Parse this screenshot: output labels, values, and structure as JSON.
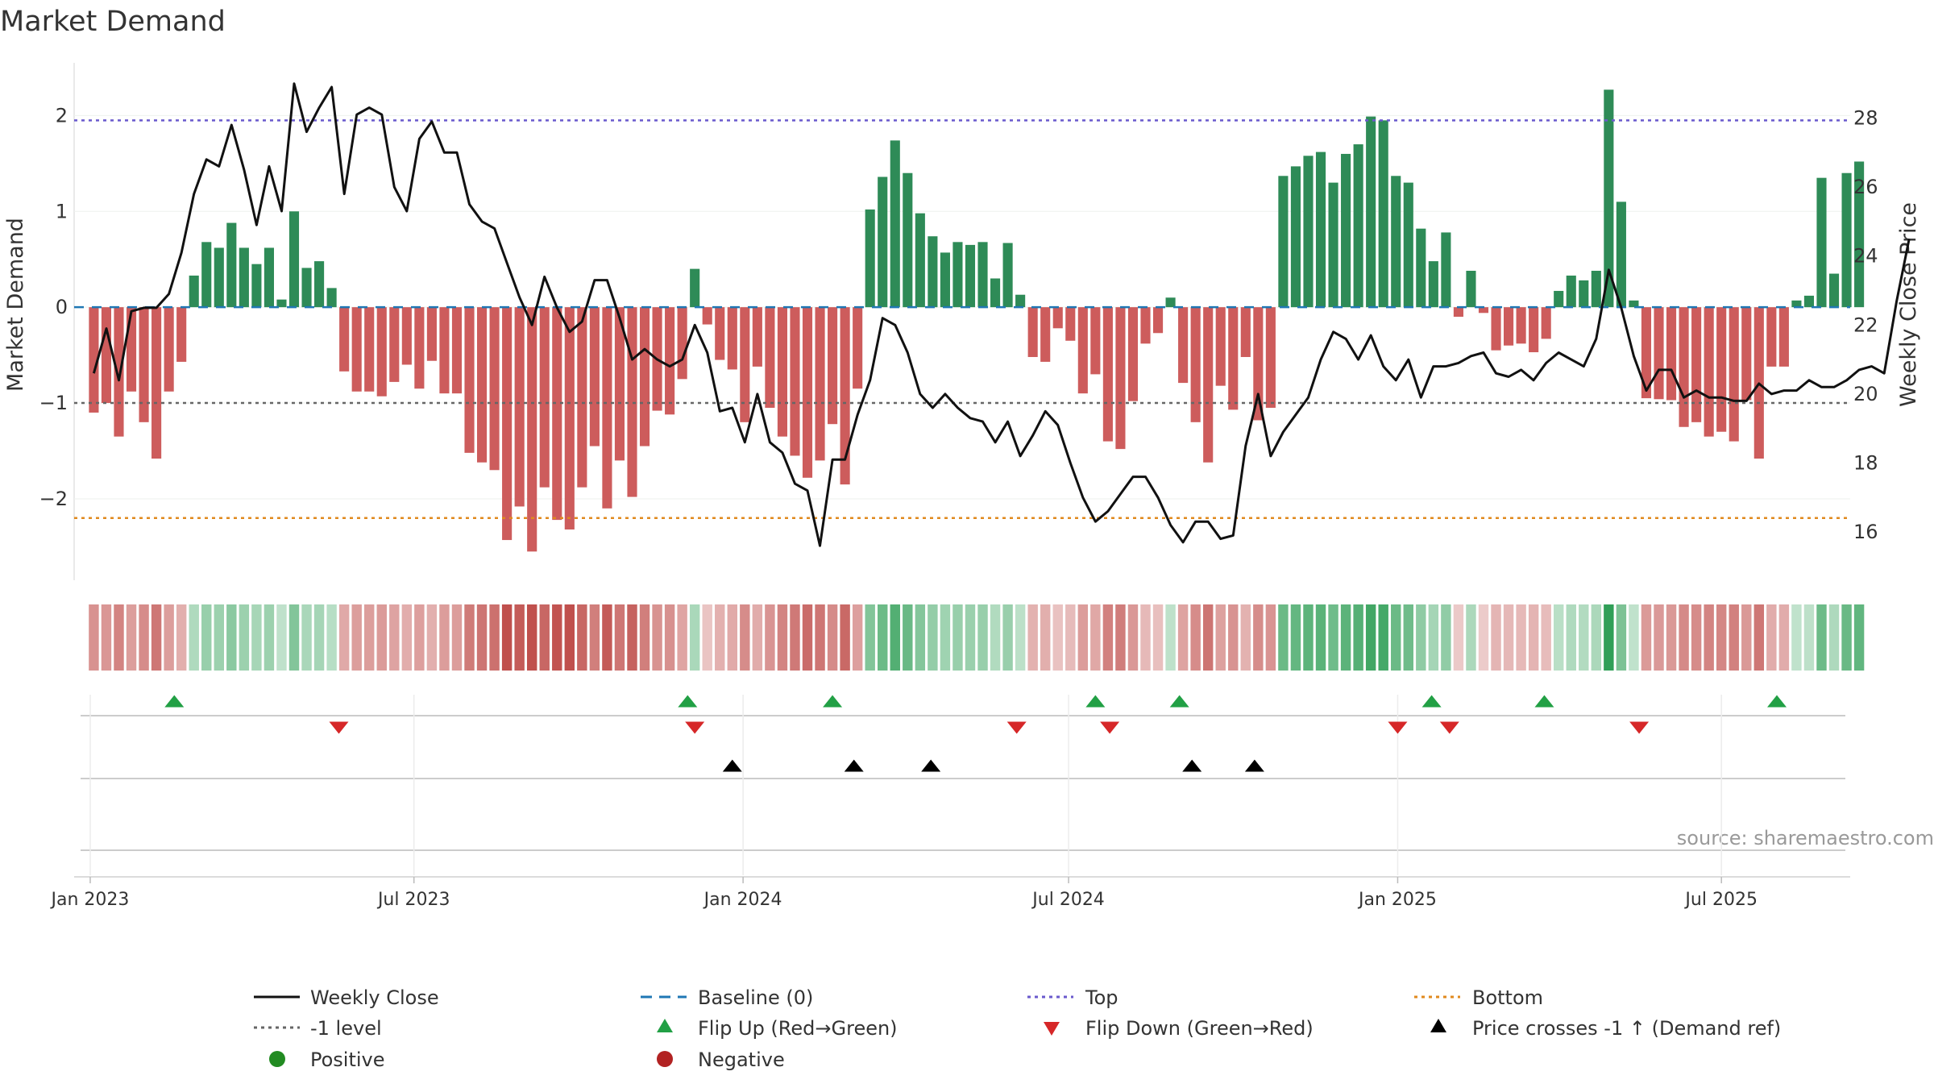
{
  "chart_data": {
    "type": "bar",
    "title": "Market Demand",
    "ylabel_left": "Market Demand",
    "ylabel_right": "Weekly Close Price",
    "source": "source: sharemaestro.com",
    "x_start": "2023-01-03",
    "x_step_days": 7,
    "xlim": [
      "2022-12-23",
      "2025-09-11"
    ],
    "ylim_left": [
      -2.85,
      2.55
    ],
    "ylim_right": [
      14.6,
      29.6
    ],
    "yticks_left": [
      2,
      1,
      0,
      -1,
      -2
    ],
    "ytick_labels_left": [
      "2",
      "1",
      "0",
      "−1",
      "−2"
    ],
    "yticks_right": [
      28,
      26,
      24,
      22,
      20,
      18,
      16
    ],
    "ytick_labels_right": [
      "28",
      "26",
      "24",
      "22",
      "20",
      "18",
      "16"
    ],
    "xticks": [
      "2023-01-01",
      "2023-07-01",
      "2024-01-01",
      "2024-07-01",
      "2025-01-01",
      "2025-07-01"
    ],
    "xtick_labels": [
      "Jan 2023",
      "Jul 2023",
      "Jan 2024",
      "Jul 2024",
      "Jan 2025",
      "Jul 2025"
    ],
    "reference_lines": {
      "top": 1.95,
      "bottom": -2.2,
      "minus_one": -1,
      "baseline": 0
    },
    "demand": [
      -1.1,
      -1.0,
      -1.35,
      -0.88,
      -1.2,
      -1.58,
      -0.88,
      -0.57,
      0.33,
      0.68,
      0.62,
      0.88,
      0.62,
      0.45,
      0.62,
      0.08,
      1.0,
      0.41,
      0.48,
      0.2,
      -0.67,
      -0.88,
      -0.88,
      -0.93,
      -0.78,
      -0.6,
      -0.85,
      -0.56,
      -0.9,
      -0.9,
      -1.52,
      -1.62,
      -1.7,
      -2.43,
      -2.08,
      -2.55,
      -1.88,
      -2.22,
      -2.32,
      -1.88,
      -1.45,
      -2.1,
      -1.6,
      -1.98,
      -1.45,
      -1.08,
      -1.12,
      -0.75,
      0.4,
      -0.18,
      -0.55,
      -0.65,
      -1.2,
      -0.62,
      -1.05,
      -1.35,
      -1.55,
      -1.78,
      -1.6,
      -1.22,
      -1.85,
      -0.85,
      1.02,
      1.36,
      1.74,
      1.4,
      0.98,
      0.74,
      0.57,
      0.68,
      0.65,
      0.68,
      0.3,
      0.67,
      0.13,
      -0.52,
      -0.57,
      -0.22,
      -0.35,
      -0.9,
      -0.7,
      -1.4,
      -1.48,
      -0.98,
      -0.38,
      -0.27,
      0.1,
      -0.79,
      -1.2,
      -1.62,
      -0.82,
      -1.07,
      -0.52,
      -1.18,
      -1.05,
      1.37,
      1.47,
      1.58,
      1.62,
      1.3,
      1.6,
      1.7,
      1.99,
      1.95,
      1.37,
      1.3,
      0.82,
      0.48,
      0.78,
      -0.1,
      0.38,
      -0.06,
      -0.45,
      -0.4,
      -0.38,
      -0.47,
      -0.33,
      0.17,
      0.33,
      0.28,
      0.38,
      2.27,
      1.1,
      0.07,
      -0.95,
      -0.96,
      -0.97,
      -1.25,
      -1.2,
      -1.35,
      -1.3,
      -1.4,
      -0.97,
      -1.58,
      -0.62,
      -0.62,
      0.07,
      0.12,
      1.35,
      0.35,
      1.4,
      1.52
    ],
    "weekly_close": [
      20.6,
      21.9,
      20.4,
      22.4,
      22.5,
      22.5,
      22.9,
      24.1,
      25.8,
      26.8,
      26.6,
      27.8,
      26.5,
      24.9,
      26.6,
      25.3,
      29.0,
      27.6,
      28.3,
      28.9,
      25.8,
      28.1,
      28.3,
      28.1,
      26.0,
      25.3,
      27.4,
      27.9,
      27.0,
      27.0,
      25.5,
      25.0,
      24.8,
      23.8,
      22.8,
      22.0,
      23.4,
      22.5,
      21.8,
      22.1,
      23.3,
      23.3,
      22.2,
      21.0,
      21.3,
      21.0,
      20.8,
      21.0,
      22.0,
      21.2,
      19.5,
      19.6,
      18.6,
      20.0,
      18.6,
      18.3,
      17.4,
      17.2,
      15.6,
      18.1,
      18.1,
      19.4,
      20.4,
      22.2,
      22.0,
      21.2,
      20.0,
      19.6,
      20.0,
      19.6,
      19.3,
      19.2,
      18.6,
      19.2,
      18.2,
      18.8,
      19.5,
      19.1,
      18.0,
      17.0,
      16.3,
      16.6,
      17.1,
      17.6,
      17.6,
      17.0,
      16.2,
      15.7,
      16.3,
      16.3,
      15.8,
      15.9,
      18.5,
      20.0,
      18.2,
      18.9,
      19.4,
      19.9,
      21.0,
      21.8,
      21.6,
      21.0,
      21.7,
      20.8,
      20.4,
      21.0,
      19.9,
      20.8,
      20.8,
      20.9,
      21.1,
      21.2,
      20.6,
      20.5,
      20.7,
      20.4,
      20.9,
      21.2,
      21.0,
      20.8,
      21.6,
      23.6,
      22.5,
      21.1,
      20.1,
      20.7,
      20.7,
      19.9,
      20.1,
      19.9,
      19.9,
      19.8,
      19.8,
      20.3,
      20.0,
      20.1,
      20.1,
      20.4,
      20.2,
      20.2,
      20.4,
      20.7,
      20.8,
      20.6,
      22.7,
      24.5
    ],
    "flip_up_dates": [
      "2023-02-17",
      "2023-12-01",
      "2024-02-20",
      "2024-07-16",
      "2024-09-01",
      "2025-01-20",
      "2025-03-24",
      "2025-08-01"
    ],
    "flip_down_dates": [
      "2023-05-20",
      "2023-12-05",
      "2024-06-02",
      "2024-07-24",
      "2025-01-01",
      "2025-01-30",
      "2025-05-16"
    ],
    "price_cross_dates": [
      "2023-12-26",
      "2024-03-03",
      "2024-04-15",
      "2024-09-08",
      "2024-10-13"
    ],
    "legend": [
      {
        "label": "Weekly Close"
      },
      {
        "label": "Baseline (0)"
      },
      {
        "label": "Top"
      },
      {
        "label": "Bottom"
      },
      {
        "label": "-1 level"
      },
      {
        "label": "Flip Up (Red→Green)"
      },
      {
        "label": "Flip Down (Green→Red)"
      },
      {
        "label": "Price crosses -1 ↑ (Demand ref)"
      },
      {
        "label": "Positive"
      },
      {
        "label": "Negative"
      }
    ],
    "colors": {
      "positive": "#2e8b57",
      "negative": "#cd5c5c",
      "close": "#111111",
      "baseline": "#1f77b4",
      "top": "#6a5acd",
      "bottom": "#e08a1e",
      "minus_one": "#666666",
      "flip_up": "#22a045",
      "flip_down": "#d62728",
      "cross": "#000000",
      "legend_positive": "#228b22",
      "legend_negative": "#b22222"
    }
  }
}
